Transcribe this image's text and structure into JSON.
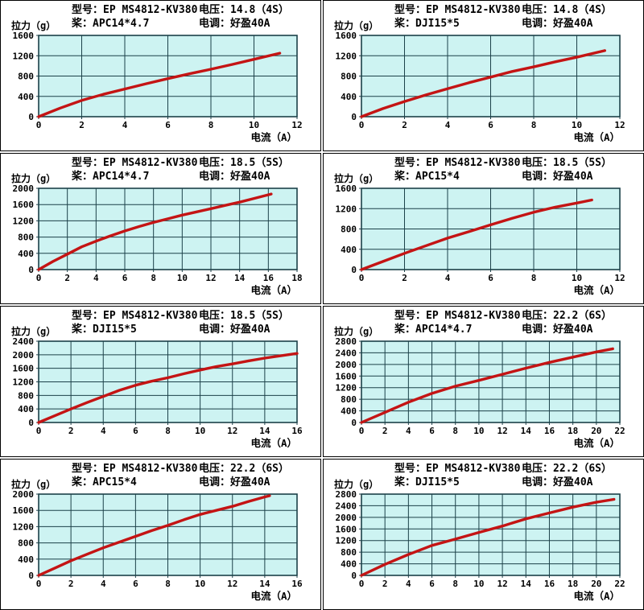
{
  "labels": {
    "model": "型号：",
    "voltage": "电压：",
    "prop": "桨：",
    "esc": "电调："
  },
  "colors": {
    "plot_bg": "#cdf3f2",
    "grid": "#1c4149",
    "curve": "#c41414",
    "text": "#000000",
    "panel_border": "#000000"
  },
  "chart_data": [
    {
      "type": "line",
      "model": "EP MS4812-KV380",
      "voltage": "14.8（4S）",
      "prop": "APC14*4.7",
      "esc": "好盈40A",
      "xlabel": "电流（A）",
      "ylabel": "拉力（g）",
      "xlim": [
        0,
        12
      ],
      "xtick_step": 2,
      "ylim": [
        0,
        1600
      ],
      "ytick_step": 400,
      "grid": true,
      "points": [
        [
          0,
          0
        ],
        [
          1,
          170
        ],
        [
          2,
          320
        ],
        [
          3,
          440
        ],
        [
          4,
          545
        ],
        [
          5,
          650
        ],
        [
          6,
          750
        ],
        [
          7,
          845
        ],
        [
          8,
          935
        ],
        [
          9,
          1030
        ],
        [
          10,
          1130
        ],
        [
          11.2,
          1250
        ]
      ]
    },
    {
      "type": "line",
      "model": "EP MS4812-KV380",
      "voltage": "14.8（4S）",
      "prop": "DJI15*5",
      "esc": "好盈40A",
      "xlabel": "电流（A）",
      "ylabel": "拉力（g）",
      "xlim": [
        0,
        12
      ],
      "xtick_step": 2,
      "ylim": [
        0,
        1600
      ],
      "ytick_step": 400,
      "grid": true,
      "points": [
        [
          0,
          0
        ],
        [
          1,
          160
        ],
        [
          2,
          300
        ],
        [
          3,
          430
        ],
        [
          4,
          550
        ],
        [
          5,
          670
        ],
        [
          6,
          780
        ],
        [
          7,
          890
        ],
        [
          8,
          980
        ],
        [
          9,
          1080
        ],
        [
          10,
          1170
        ],
        [
          11.3,
          1300
        ]
      ]
    },
    {
      "type": "line",
      "model": "EP MS4812-KV380",
      "voltage": "18.5（5S）",
      "prop": "APC14*4.7",
      "esc": "好盈40A",
      "xlabel": "电流（A）",
      "ylabel": "拉力（g）",
      "xlim": [
        0,
        18
      ],
      "xtick_step": 2,
      "ylim": [
        0,
        2000
      ],
      "ytick_step": 400,
      "grid": true,
      "points": [
        [
          0,
          0
        ],
        [
          1,
          200
        ],
        [
          2,
          380
        ],
        [
          3,
          560
        ],
        [
          4,
          700
        ],
        [
          5,
          830
        ],
        [
          6,
          950
        ],
        [
          7,
          1060
        ],
        [
          8,
          1160
        ],
        [
          9,
          1250
        ],
        [
          10,
          1340
        ],
        [
          11,
          1420
        ],
        [
          12,
          1500
        ],
        [
          13,
          1580
        ],
        [
          14,
          1660
        ],
        [
          15,
          1750
        ],
        [
          16.2,
          1860
        ]
      ]
    },
    {
      "type": "line",
      "model": "EP MS4812-KV380",
      "voltage": "18.5（5S）",
      "prop": "APC15*4",
      "esc": "好盈40A",
      "xlabel": "电流（A）",
      "ylabel": "拉力（g）",
      "xlim": [
        0,
        12
      ],
      "xtick_step": 2,
      "ylim": [
        0,
        1600
      ],
      "ytick_step": 400,
      "grid": true,
      "points": [
        [
          0,
          0
        ],
        [
          1,
          160
        ],
        [
          2,
          320
        ],
        [
          3,
          470
        ],
        [
          4,
          620
        ],
        [
          5,
          750
        ],
        [
          6,
          880
        ],
        [
          7,
          1010
        ],
        [
          8,
          1130
        ],
        [
          9,
          1230
        ],
        [
          10,
          1310
        ],
        [
          10.7,
          1370
        ]
      ]
    },
    {
      "type": "line",
      "model": "EP MS4812-KV380",
      "voltage": "18.5（5S）",
      "prop": "DJI15*5",
      "esc": "好盈40A",
      "xlabel": "电流（A）",
      "ylabel": "拉力（g）",
      "xlim": [
        0,
        16
      ],
      "xtick_step": 2,
      "ylim": [
        0,
        2400
      ],
      "ytick_step": 400,
      "grid": true,
      "points": [
        [
          0,
          0
        ],
        [
          1,
          200
        ],
        [
          2,
          400
        ],
        [
          3,
          590
        ],
        [
          4,
          770
        ],
        [
          5,
          950
        ],
        [
          6,
          1100
        ],
        [
          7,
          1220
        ],
        [
          8,
          1320
        ],
        [
          9,
          1440
        ],
        [
          10,
          1550
        ],
        [
          11,
          1650
        ],
        [
          12,
          1730
        ],
        [
          13,
          1820
        ],
        [
          14,
          1900
        ],
        [
          15,
          1970
        ],
        [
          16,
          2040
        ]
      ]
    },
    {
      "type": "line",
      "model": "EP MS4812-KV380",
      "voltage": "22.2（6S）",
      "prop": "APC14*4.7",
      "esc": "好盈40A",
      "xlabel": "电流（A）",
      "ylabel": "拉力（g）",
      "xlim": [
        0,
        22
      ],
      "xtick_step": 2,
      "ylim": [
        0,
        2800
      ],
      "ytick_step": 400,
      "grid": true,
      "points": [
        [
          0,
          0
        ],
        [
          2,
          350
        ],
        [
          4,
          700
        ],
        [
          6,
          1000
        ],
        [
          8,
          1250
        ],
        [
          10,
          1450
        ],
        [
          12,
          1660
        ],
        [
          14,
          1870
        ],
        [
          16,
          2070
        ],
        [
          18,
          2250
        ],
        [
          20,
          2430
        ],
        [
          21.4,
          2540
        ]
      ]
    },
    {
      "type": "line",
      "model": "EP MS4812-KV380",
      "voltage": "22.2（6S）",
      "prop": "APC15*4",
      "esc": "好盈40A",
      "xlabel": "电流（A）",
      "ylabel": "拉力（g）",
      "xlim": [
        0,
        16
      ],
      "xtick_step": 2,
      "ylim": [
        0,
        2000
      ],
      "ytick_step": 400,
      "grid": true,
      "points": [
        [
          0,
          0
        ],
        [
          1,
          180
        ],
        [
          2,
          360
        ],
        [
          3,
          520
        ],
        [
          4,
          680
        ],
        [
          5,
          820
        ],
        [
          6,
          960
        ],
        [
          7,
          1100
        ],
        [
          8,
          1230
        ],
        [
          9,
          1370
        ],
        [
          10,
          1500
        ],
        [
          11,
          1600
        ],
        [
          12,
          1700
        ],
        [
          13,
          1820
        ],
        [
          14,
          1930
        ],
        [
          14.3,
          1960
        ]
      ]
    },
    {
      "type": "line",
      "model": "EP MS4812-KV380",
      "voltage": "22.2（6S）",
      "prop": "DJI15*5",
      "esc": "好盈40A",
      "xlabel": "电流（A）",
      "ylabel": "拉力（g）",
      "xlim": [
        0,
        22
      ],
      "xtick_step": 2,
      "ylim": [
        0,
        2800
      ],
      "ytick_step": 400,
      "grid": true,
      "points": [
        [
          0,
          0
        ],
        [
          2,
          380
        ],
        [
          4,
          720
        ],
        [
          6,
          1030
        ],
        [
          8,
          1250
        ],
        [
          10,
          1480
        ],
        [
          12,
          1700
        ],
        [
          14,
          1950
        ],
        [
          16,
          2150
        ],
        [
          18,
          2350
        ],
        [
          20,
          2520
        ],
        [
          21.5,
          2620
        ]
      ]
    }
  ]
}
